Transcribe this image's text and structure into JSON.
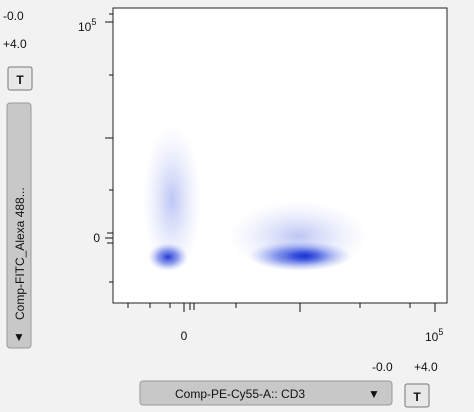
{
  "y_range": {
    "min": "-0.0",
    "max": "+4.0"
  },
  "y_axis": {
    "label": "Comp-FITC_Alexa 488...",
    "menu": "▼",
    "ticks": [
      {
        "base": "10",
        "exp": "5"
      },
      "0"
    ]
  },
  "x_axis": {
    "label": "Comp-PE-Cy55-A:: CD3",
    "menu": "▼",
    "ticks": [
      "0",
      {
        "base": "10",
        "exp": "5"
      }
    ],
    "range": {
      "min": "-0.0",
      "max": "+4.0"
    }
  },
  "buttons": [
    "T",
    "T"
  ]
}
